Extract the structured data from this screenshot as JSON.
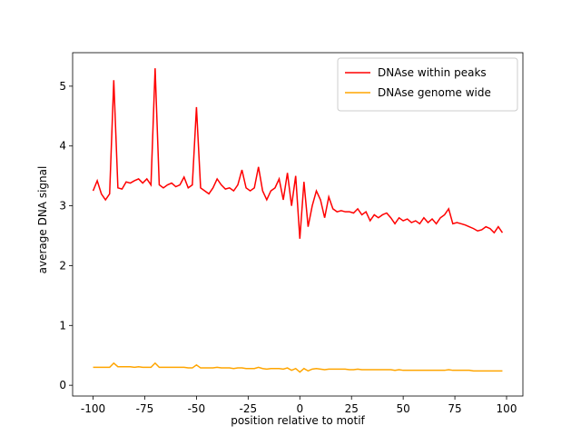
{
  "chart_data": {
    "type": "line",
    "x_label": "position relative to motif",
    "y_label": "average DNA signal",
    "x": [
      -100,
      -98,
      -96,
      -94,
      -92,
      -90,
      -88,
      -86,
      -84,
      -82,
      -80,
      -78,
      -76,
      -74,
      -72,
      -70,
      -68,
      -66,
      -64,
      -62,
      -60,
      -58,
      -56,
      -54,
      -52,
      -50,
      -48,
      -46,
      -44,
      -42,
      -40,
      -38,
      -36,
      -34,
      -32,
      -30,
      -28,
      -26,
      -24,
      -22,
      -20,
      -18,
      -16,
      -14,
      -12,
      -10,
      -8,
      -6,
      -4,
      -2,
      0,
      2,
      4,
      6,
      8,
      10,
      12,
      14,
      16,
      18,
      20,
      22,
      24,
      26,
      28,
      30,
      32,
      34,
      36,
      38,
      40,
      42,
      44,
      46,
      48,
      50,
      52,
      54,
      56,
      58,
      60,
      62,
      64,
      66,
      68,
      70,
      72,
      74,
      76,
      78,
      80,
      82,
      84,
      86,
      88,
      90,
      92,
      94,
      96,
      98
    ],
    "series": [
      {
        "name": "DNAse within peaks",
        "color": "#ff0000",
        "values": [
          3.25,
          3.42,
          3.2,
          3.1,
          3.2,
          5.1,
          3.3,
          3.28,
          3.4,
          3.38,
          3.42,
          3.45,
          3.38,
          3.45,
          3.35,
          5.3,
          3.35,
          3.3,
          3.35,
          3.38,
          3.32,
          3.35,
          3.48,
          3.3,
          3.35,
          4.65,
          3.3,
          3.25,
          3.2,
          3.3,
          3.45,
          3.35,
          3.28,
          3.3,
          3.25,
          3.35,
          3.6,
          3.3,
          3.25,
          3.3,
          3.65,
          3.25,
          3.1,
          3.25,
          3.3,
          3.45,
          3.1,
          3.55,
          3.0,
          3.5,
          2.45,
          3.4,
          2.65,
          3.0,
          3.25,
          3.1,
          2.8,
          3.15,
          2.95,
          2.9,
          2.92,
          2.9,
          2.9,
          2.88,
          2.95,
          2.85,
          2.9,
          2.75,
          2.85,
          2.8,
          2.85,
          2.88,
          2.8,
          2.7,
          2.8,
          2.75,
          2.78,
          2.72,
          2.75,
          2.7,
          2.8,
          2.72,
          2.78,
          2.7,
          2.8,
          2.85,
          2.95,
          2.7,
          2.72,
          2.7,
          2.68,
          2.65,
          2.62,
          2.58,
          2.6,
          2.65,
          2.62,
          2.55,
          2.65,
          2.55
        ]
      },
      {
        "name": "DNAse genome wide",
        "color": "#ffa500",
        "values": [
          0.3,
          0.3,
          0.3,
          0.3,
          0.3,
          0.37,
          0.31,
          0.31,
          0.31,
          0.31,
          0.3,
          0.31,
          0.3,
          0.3,
          0.3,
          0.37,
          0.3,
          0.3,
          0.3,
          0.3,
          0.3,
          0.3,
          0.3,
          0.29,
          0.29,
          0.34,
          0.29,
          0.29,
          0.29,
          0.29,
          0.3,
          0.29,
          0.29,
          0.29,
          0.28,
          0.29,
          0.29,
          0.28,
          0.28,
          0.28,
          0.3,
          0.28,
          0.27,
          0.28,
          0.28,
          0.28,
          0.27,
          0.29,
          0.25,
          0.28,
          0.22,
          0.28,
          0.24,
          0.27,
          0.28,
          0.27,
          0.26,
          0.27,
          0.27,
          0.27,
          0.27,
          0.27,
          0.26,
          0.26,
          0.27,
          0.26,
          0.26,
          0.26,
          0.26,
          0.26,
          0.26,
          0.26,
          0.26,
          0.25,
          0.26,
          0.25,
          0.25,
          0.25,
          0.25,
          0.25,
          0.25,
          0.25,
          0.25,
          0.25,
          0.25,
          0.25,
          0.26,
          0.25,
          0.25,
          0.25,
          0.25,
          0.25,
          0.24,
          0.24,
          0.24,
          0.24,
          0.24,
          0.24,
          0.24,
          0.24
        ]
      }
    ],
    "xlim": [
      -109.9,
      107.9
    ],
    "ylim": [
      -0.18,
      5.56
    ],
    "xticks": [
      -100,
      -75,
      -50,
      -25,
      0,
      25,
      50,
      75,
      100
    ],
    "yticks": [
      0,
      1,
      2,
      3,
      4,
      5
    ],
    "legend": "upper right"
  }
}
